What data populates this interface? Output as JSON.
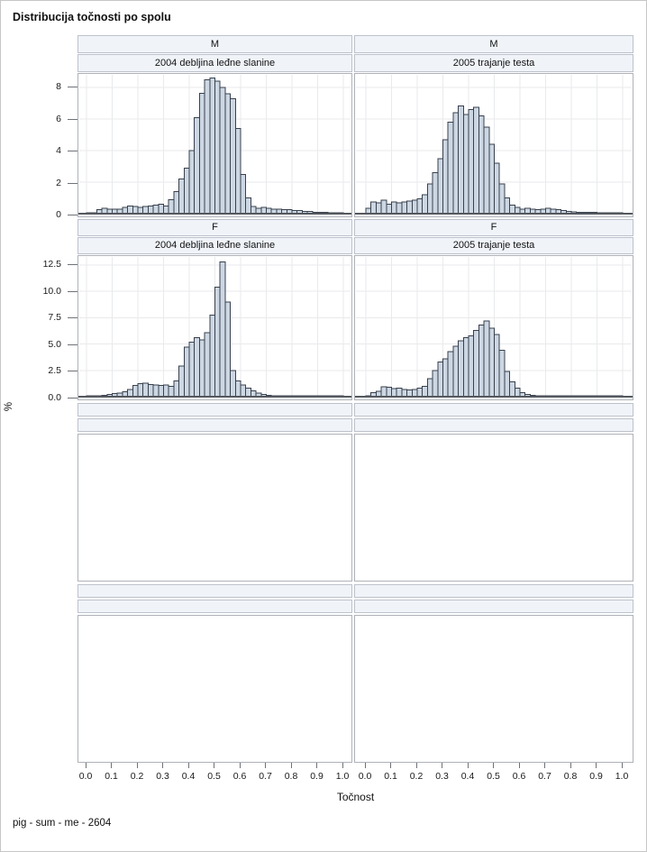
{
  "page": {
    "title": "Distribucija točnosti po spolu",
    "footer": "pig - sum - me - 2604"
  },
  "axis": {
    "x_label": "Točnost",
    "y_label": "%",
    "x_ticks": [
      "0.0",
      "0.1",
      "0.2",
      "0.3",
      "0.4",
      "0.5",
      "0.6",
      "0.7",
      "0.8",
      "0.9",
      "1.0"
    ]
  },
  "colors": {
    "bar_fill": "#ccd7e3",
    "bar_stroke": "#39414d",
    "grid": "#e8eaec",
    "baseline": "#54585e",
    "header_bg": "#f0f4f9",
    "tick": "#6e7277"
  },
  "chart_data": [
    {
      "type": "histogram",
      "group": "M",
      "title": "2004 debljina leđne slanine",
      "xlabel": "Točnost",
      "ylabel": "%",
      "xlim": [
        0,
        1
      ],
      "bin_start": 0,
      "bin_width": 0.02,
      "ymax": 8.7,
      "y_ticks": [
        0,
        2,
        4,
        6,
        8
      ],
      "y_tick_labels": [
        "0",
        "2",
        "4",
        "6",
        "8"
      ],
      "values": [
        0.02,
        0.05,
        0.25,
        0.35,
        0.3,
        0.28,
        0.3,
        0.4,
        0.5,
        0.45,
        0.4,
        0.45,
        0.5,
        0.55,
        0.6,
        0.5,
        0.9,
        1.4,
        2.2,
        2.9,
        4.0,
        6.1,
        7.65,
        8.5,
        8.6,
        8.4,
        8.0,
        7.6,
        7.3,
        5.4,
        2.5,
        1.0,
        0.45,
        0.35,
        0.4,
        0.35,
        0.3,
        0.3,
        0.25,
        0.25,
        0.2,
        0.2,
        0.15,
        0.15,
        0.1,
        0.08,
        0.1,
        0.05,
        0.03,
        0.02
      ]
    },
    {
      "type": "histogram",
      "group": "M",
      "title": "2005 trajanje testa",
      "xlabel": "Točnost",
      "ylabel": "%",
      "xlim": [
        0,
        1
      ],
      "bin_start": 0,
      "bin_width": 0.02,
      "ymax": 8.7,
      "y_ticks": [
        0,
        2,
        4,
        6,
        8
      ],
      "y_tick_labels": [
        "0",
        "2",
        "4",
        "6",
        "8"
      ],
      "values": [
        0.35,
        0.75,
        0.7,
        0.85,
        0.6,
        0.75,
        0.7,
        0.75,
        0.8,
        0.85,
        0.95,
        1.2,
        1.9,
        2.6,
        3.5,
        4.7,
        5.8,
        6.4,
        6.85,
        6.3,
        6.6,
        6.75,
        6.2,
        5.5,
        4.4,
        3.2,
        1.9,
        1.0,
        0.55,
        0.4,
        0.3,
        0.35,
        0.3,
        0.25,
        0.3,
        0.35,
        0.3,
        0.25,
        0.2,
        0.15,
        0.12,
        0.1,
        0.1,
        0.08,
        0.08,
        0.06,
        0.05,
        0.05,
        0.04,
        0.03
      ]
    },
    {
      "type": "histogram",
      "group": "F",
      "title": "2004 debljina leđne slanine",
      "xlabel": "Točnost",
      "ylabel": "%",
      "xlim": [
        0,
        1
      ],
      "bin_start": 0,
      "bin_width": 0.02,
      "ymax": 13.1,
      "y_ticks": [
        0,
        2.5,
        5,
        7.5,
        10,
        12.5
      ],
      "y_tick_labels": [
        "0.0",
        "2.5",
        "5.0",
        "7.5",
        "10.0",
        "12.5"
      ],
      "values": [
        0.02,
        0.05,
        0.08,
        0.12,
        0.2,
        0.28,
        0.35,
        0.45,
        0.7,
        1.05,
        1.25,
        1.3,
        1.15,
        1.1,
        1.05,
        1.1,
        1.0,
        1.5,
        2.9,
        4.7,
        5.2,
        5.6,
        5.4,
        6.1,
        7.75,
        10.4,
        12.8,
        9.0,
        2.5,
        1.5,
        1.1,
        0.8,
        0.55,
        0.35,
        0.2,
        0.12,
        0.08,
        0.06,
        0.05,
        0.05,
        0.04,
        0.04,
        0.03,
        0.03,
        0.02,
        0.02,
        0.01,
        0.01,
        0.01,
        0.01
      ]
    },
    {
      "type": "histogram",
      "group": "F",
      "title": "2005 trajanje testa",
      "xlabel": "Točnost",
      "ylabel": "%",
      "xlim": [
        0,
        1
      ],
      "bin_start": 0,
      "bin_width": 0.02,
      "ymax": 13.1,
      "y_ticks": [
        0,
        2.5,
        5,
        7.5,
        10,
        12.5
      ],
      "y_tick_labels": [
        "0.0",
        "2.5",
        "5.0",
        "7.5",
        "10.0",
        "12.5"
      ],
      "values": [
        0.1,
        0.4,
        0.5,
        0.95,
        0.9,
        0.75,
        0.8,
        0.7,
        0.65,
        0.7,
        0.8,
        1.0,
        1.7,
        2.5,
        3.3,
        3.6,
        4.3,
        4.8,
        5.3,
        5.6,
        5.8,
        6.3,
        6.8,
        7.2,
        6.5,
        5.9,
        4.4,
        2.4,
        1.4,
        0.8,
        0.4,
        0.2,
        0.12,
        0.08,
        0.06,
        0.05,
        0.05,
        0.05,
        0.04,
        0.04,
        0.04,
        0.03,
        0.03,
        0.03,
        0.02,
        0.02,
        0.02,
        0.01,
        0.01,
        0.01
      ]
    }
  ]
}
